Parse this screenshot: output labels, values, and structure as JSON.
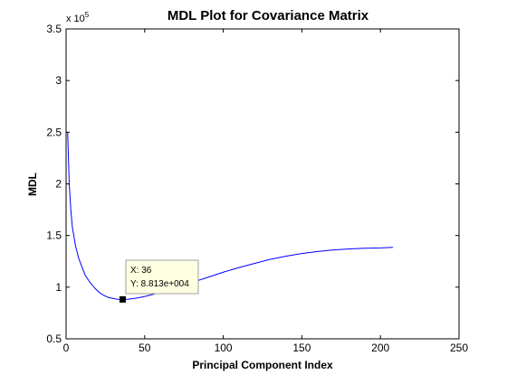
{
  "chart_data": {
    "type": "line",
    "title": "MDL Plot for Covariance Matrix",
    "xlabel": "Principal Component Index",
    "ylabel": "MDL",
    "xlim": [
      0,
      250
    ],
    "ylim": [
      50000,
      350000
    ],
    "x_ticks": [
      0,
      50,
      100,
      150,
      200,
      250
    ],
    "x_tick_labels": [
      "0",
      "50",
      "100",
      "150",
      "200",
      "250"
    ],
    "y_ticks": [
      50000,
      100000,
      150000,
      200000,
      250000,
      300000,
      350000
    ],
    "y_tick_labels": [
      "0.5",
      "1",
      "1.5",
      "2",
      "2.5",
      "3",
      "3.5"
    ],
    "y_exponent_label": "x 10",
    "y_exponent_power": "5",
    "grid": false,
    "line_color": "#0000ff",
    "series": [
      {
        "x": [
          1,
          2,
          3,
          4,
          6,
          8,
          10,
          12,
          15,
          18,
          21,
          24,
          27,
          30,
          33,
          36,
          39,
          42,
          45,
          50,
          55,
          60,
          70,
          80,
          90,
          100,
          110,
          120,
          130,
          140,
          150,
          160,
          170,
          180,
          190,
          200,
          208
        ],
        "values": [
          250000,
          200000,
          175000,
          158000,
          140000,
          128000,
          120000,
          112000,
          105000,
          99500,
          95000,
          92000,
          90000,
          89000,
          88300,
          88130,
          88300,
          88800,
          89500,
          91000,
          93000,
          95000,
          99500,
          104500,
          109500,
          114500,
          119000,
          123000,
          127000,
          130000,
          132500,
          134500,
          136000,
          137000,
          137700,
          138000,
          138500
        ]
      }
    ],
    "datatip": {
      "x": 36,
      "y": 88130,
      "x_text": "X: 36",
      "y_text": "Y: 8.813e+004"
    }
  }
}
